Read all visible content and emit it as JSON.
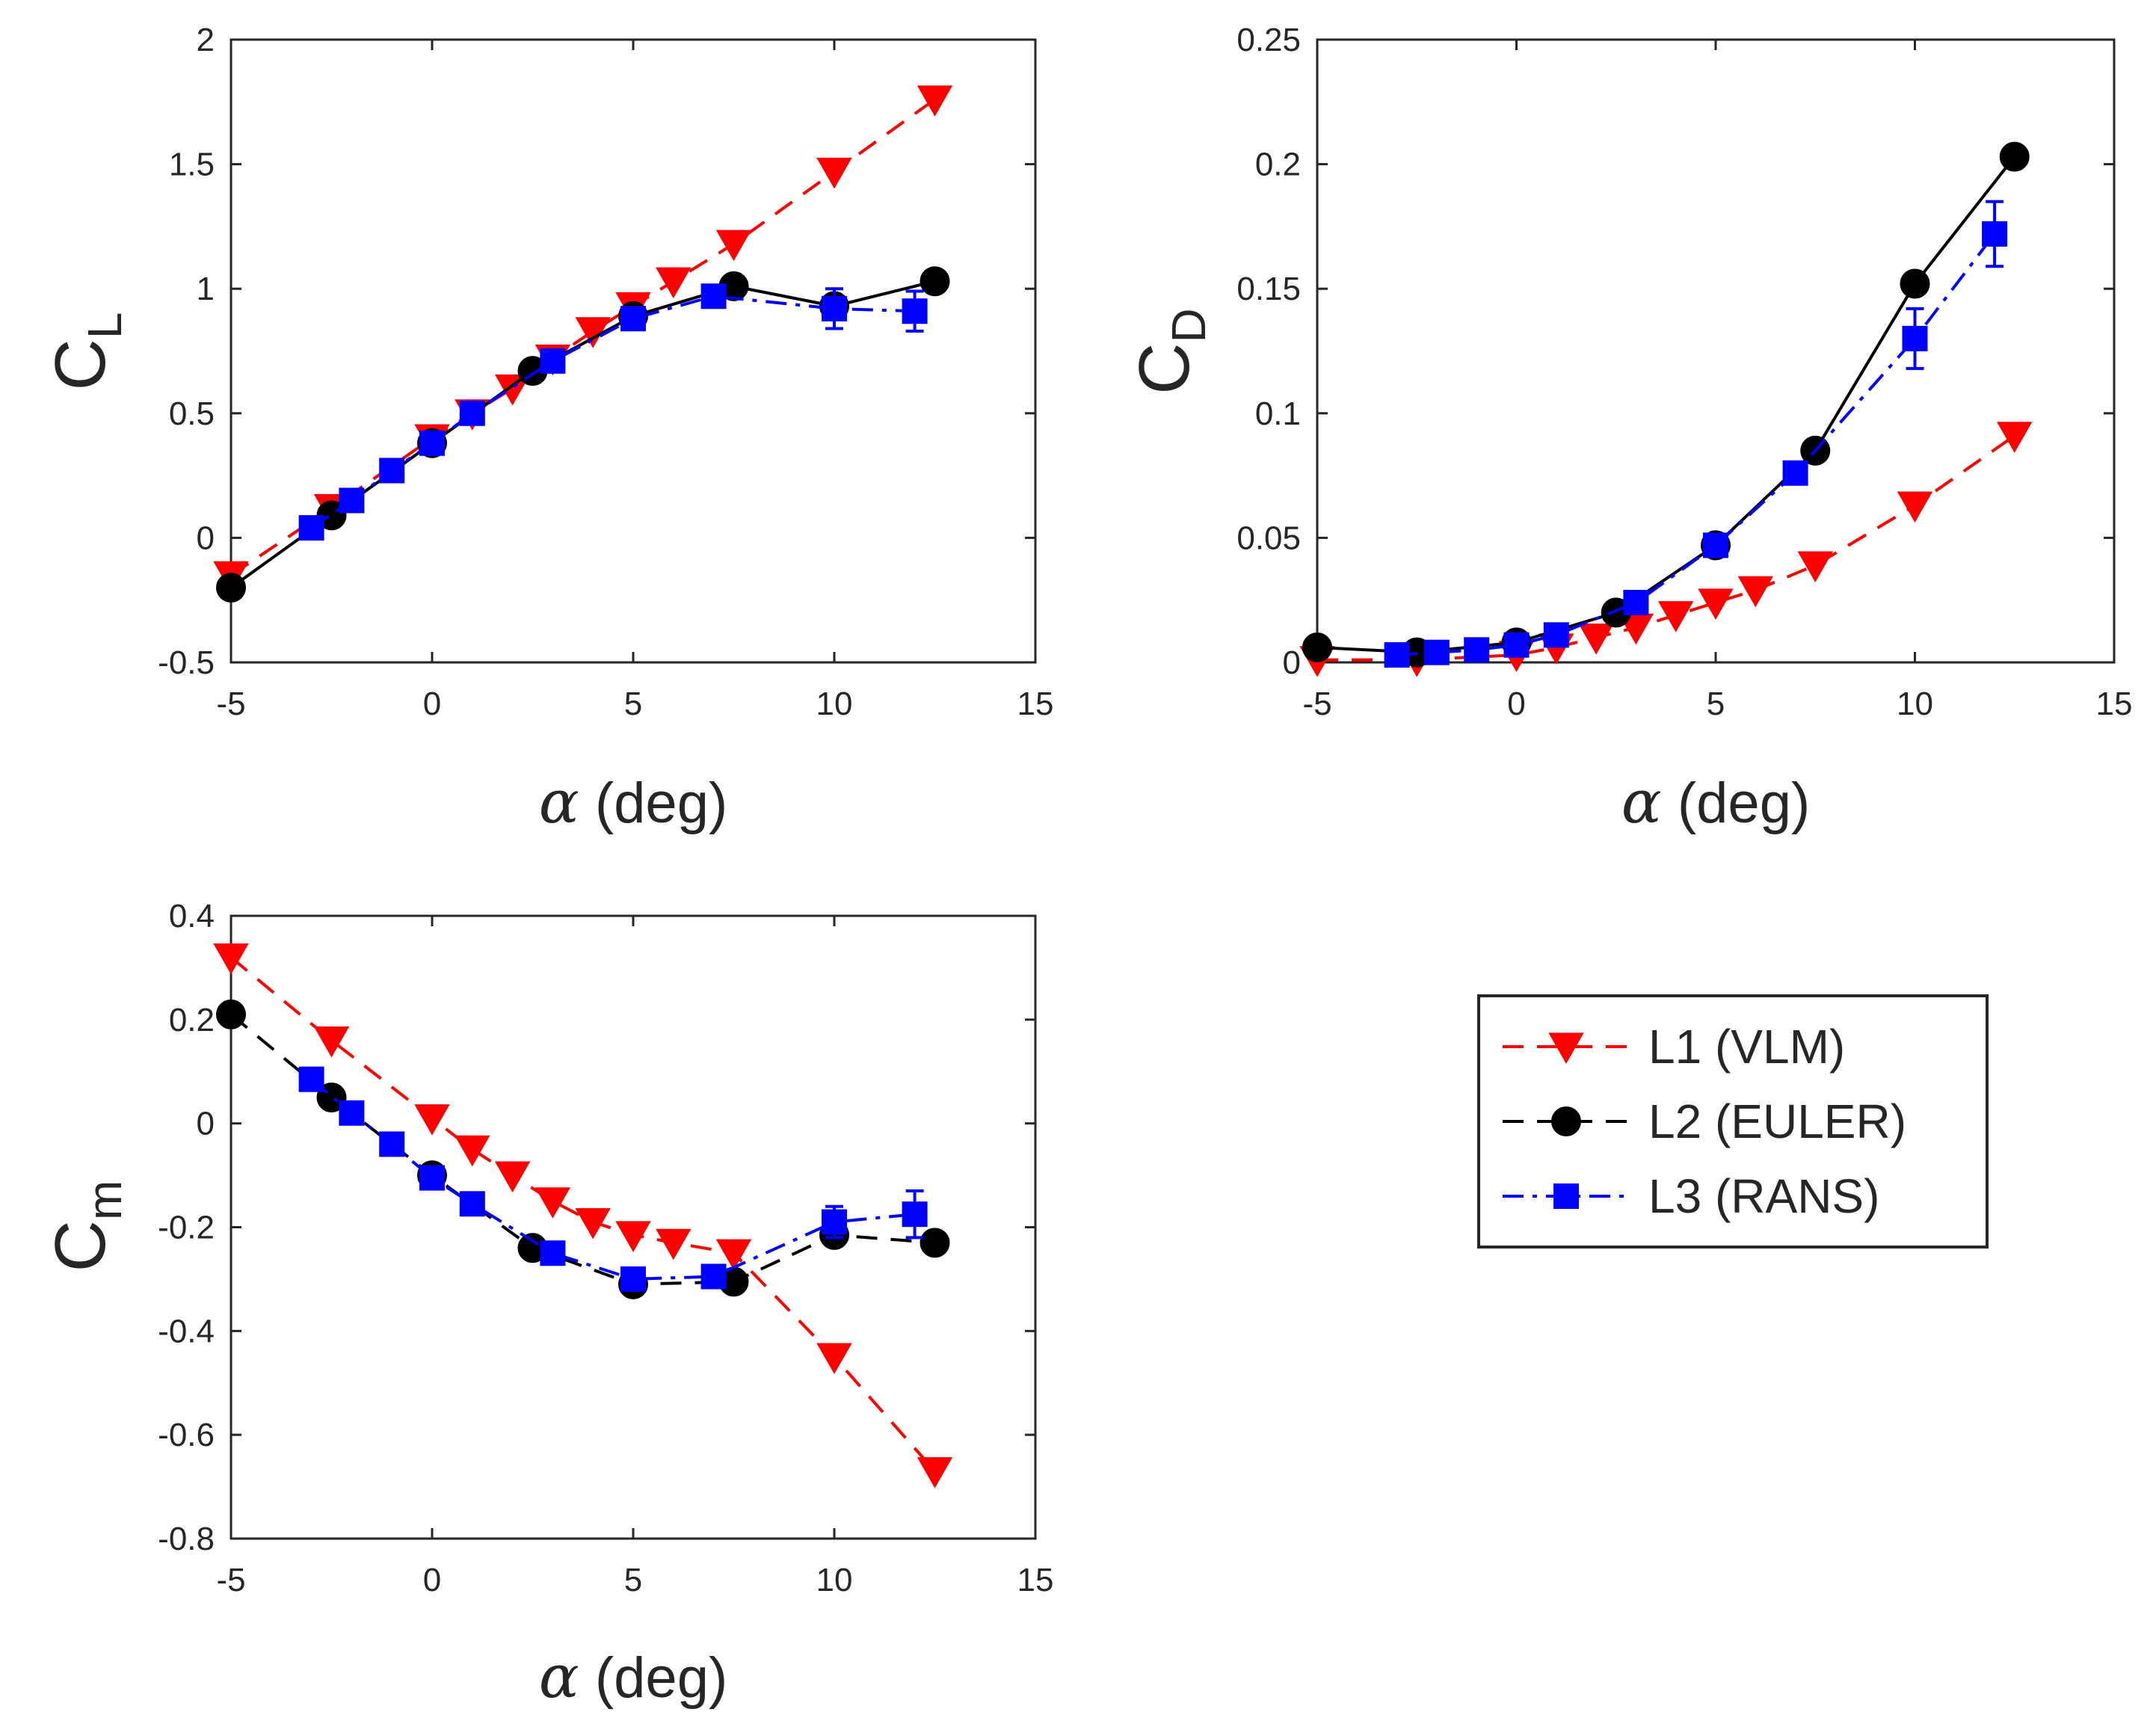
{
  "chart_data": [
    {
      "type": "line",
      "id": "cl",
      "ylabel": {
        "main": "C",
        "sub": "L"
      },
      "xlabel": {
        "symbol": "α",
        "text": " (deg)"
      },
      "xlim": [
        -5,
        15
      ],
      "ylim": [
        -0.5,
        2
      ],
      "xticks": [
        -5,
        0,
        5,
        10,
        15
      ],
      "yticks": [
        -0.5,
        0,
        0.5,
        1,
        1.5,
        2
      ],
      "xtick_labels": [
        "-5",
        "0",
        "5",
        "10",
        "15"
      ],
      "ytick_labels": [
        "-0.5",
        "0",
        "0.5",
        "1",
        "1.5",
        "2"
      ],
      "series": [
        {
          "key": "L1",
          "x": [
            -5,
            -2.5,
            0,
            1,
            2,
            3,
            4,
            5,
            6,
            7.5,
            10,
            12.5
          ],
          "y": [
            -0.15,
            0.12,
            0.4,
            0.5,
            0.6,
            0.72,
            0.83,
            0.93,
            1.03,
            1.18,
            1.47,
            1.76
          ]
        },
        {
          "key": "L2",
          "x": [
            -5,
            -2.5,
            0,
            2.5,
            5,
            7.5,
            10,
            12.5
          ],
          "y": [
            -0.2,
            0.09,
            0.38,
            0.67,
            0.89,
            1.01,
            0.93,
            1.03
          ]
        },
        {
          "key": "L3",
          "x": [
            -3,
            -2,
            -1,
            0,
            1,
            3,
            5,
            7,
            10,
            12
          ],
          "y": [
            0.04,
            0.15,
            0.27,
            0.38,
            0.5,
            0.71,
            0.88,
            0.97,
            0.92,
            0.91
          ],
          "err": [
            0,
            0,
            0,
            0,
            0,
            0,
            0,
            0,
            0.08,
            0.08
          ]
        }
      ]
    },
    {
      "type": "line",
      "id": "cd",
      "ylabel": {
        "main": "C",
        "sub": "D"
      },
      "xlabel": {
        "symbol": "α",
        "text": " (deg)"
      },
      "xlim": [
        -5,
        15
      ],
      "ylim": [
        0,
        0.25
      ],
      "xticks": [
        -5,
        0,
        5,
        10,
        15
      ],
      "yticks": [
        0,
        0.05,
        0.1,
        0.15,
        0.2,
        0.25
      ],
      "xtick_labels": [
        "-5",
        "0",
        "5",
        "10",
        "15"
      ],
      "ytick_labels": [
        "0",
        "0.05",
        "0.1",
        "0.15",
        "0.2",
        "0.25"
      ],
      "series": [
        {
          "key": "L1",
          "x": [
            -5,
            -2.5,
            0,
            1,
            2,
            3,
            4,
            5,
            6,
            7.5,
            10,
            12.5
          ],
          "y": [
            0.001,
            0.001,
            0.003,
            0.006,
            0.01,
            0.014,
            0.019,
            0.024,
            0.029,
            0.039,
            0.063,
            0.091
          ]
        },
        {
          "key": "L2",
          "x": [
            -5,
            -2.5,
            0,
            2.5,
            5,
            7.5,
            10,
            12.5
          ],
          "y": [
            0.006,
            0.004,
            0.008,
            0.02,
            0.047,
            0.085,
            0.152,
            0.203
          ]
        },
        {
          "key": "L3",
          "x": [
            -3,
            -2,
            -1,
            0,
            1,
            3,
            5,
            7,
            10,
            12
          ],
          "y": [
            0.003,
            0.004,
            0.005,
            0.007,
            0.011,
            0.024,
            0.047,
            0.076,
            0.13,
            0.172
          ],
          "err": [
            0,
            0,
            0,
            0,
            0,
            0,
            0,
            0,
            0.012,
            0.013
          ]
        }
      ]
    },
    {
      "type": "line",
      "id": "cm",
      "ylabel": {
        "main": "C",
        "sub": "m"
      },
      "xlabel": {
        "symbol": "α",
        "text": " (deg)"
      },
      "xlim": [
        -5,
        15
      ],
      "ylim": [
        -0.8,
        0.4
      ],
      "xticks": [
        -5,
        0,
        5,
        10,
        15
      ],
      "yticks": [
        -0.8,
        -0.6,
        -0.4,
        -0.2,
        0,
        0.2,
        0.4
      ],
      "xtick_labels": [
        "-5",
        "0",
        "5",
        "10",
        "15"
      ],
      "ytick_labels": [
        "-0.8",
        "-0.6",
        "-0.4",
        "-0.2",
        "0",
        "0.2",
        "0.4"
      ],
      "series": [
        {
          "key": "L1",
          "x": [
            -5,
            -2.5,
            0,
            1,
            2,
            3,
            4,
            5,
            6,
            7.5,
            10,
            12.5
          ],
          "y": [
            0.32,
            0.16,
            0.01,
            -0.05,
            -0.1,
            -0.15,
            -0.19,
            -0.215,
            -0.23,
            -0.25,
            -0.45,
            -0.67
          ]
        },
        {
          "key": "L2",
          "x": [
            -5,
            -2.5,
            0,
            2.5,
            5,
            7.5,
            10,
            12.5
          ],
          "y": [
            0.21,
            0.05,
            -0.1,
            -0.24,
            -0.31,
            -0.305,
            -0.215,
            -0.23
          ]
        },
        {
          "key": "L3",
          "x": [
            -3,
            -2,
            -1,
            0,
            1,
            3,
            5,
            7,
            10,
            12
          ],
          "y": [
            0.085,
            0.02,
            -0.04,
            -0.105,
            -0.155,
            -0.25,
            -0.3,
            -0.295,
            -0.19,
            -0.175
          ],
          "err": [
            0,
            0,
            0,
            0,
            0,
            0,
            0,
            0,
            0.03,
            0.045
          ]
        }
      ]
    }
  ],
  "legend": {
    "placement": "right of bottom-left plot",
    "entries": [
      {
        "key": "L1",
        "label": "L1 (VLM)",
        "color": "#ff0000",
        "marker": "triangle-down",
        "dash": "dashed"
      },
      {
        "key": "L2",
        "label": "L2 (EULER)",
        "color": "#000000",
        "marker": "circle",
        "dash": "dashed"
      },
      {
        "key": "L3",
        "label": "L3 (RANS)",
        "color": "#0000ff",
        "marker": "square",
        "dash": "dash-dot"
      }
    ]
  },
  "series_styles": {
    "L1": {
      "color": "#ff0000",
      "marker": "triangle-down",
      "line": "dashed"
    },
    "L2": {
      "color": "#000000",
      "marker": "circle",
      "line": "solid"
    },
    "L3": {
      "color": "#0000ff",
      "marker": "square",
      "line": "dash-dot"
    }
  },
  "series_styles_by_chart": {
    "cm": {
      "L2": {
        "line": "dashed"
      }
    }
  }
}
